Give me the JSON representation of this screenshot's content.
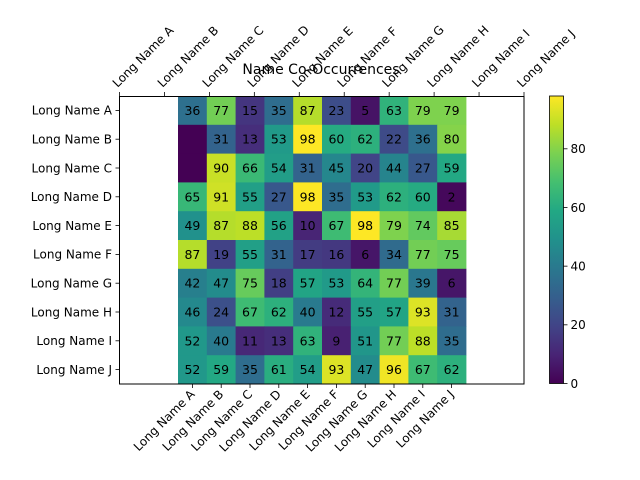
{
  "chart_data": {
    "type": "heatmap",
    "title": "Name Co-Occurrences",
    "xlabel": "",
    "ylabel": "",
    "x_categories": [
      "Long Name A",
      "Long Name B",
      "Long Name C",
      "Long Name D",
      "Long Name E",
      "Long Name F",
      "Long Name G",
      "Long Name H",
      "Long Name I",
      "Long Name J"
    ],
    "y_categories": [
      "Long Name A",
      "Long Name B",
      "Long Name C",
      "Long Name D",
      "Long Name E",
      "Long Name F",
      "Long Name G",
      "Long Name H",
      "Long Name I",
      "Long Name J"
    ],
    "top_axis_labels": [
      "Long Name A",
      "Long Name B",
      "Long Name C",
      "Long Name D",
      "Long Name E",
      "Long Name F",
      "Long Name G",
      "Long Name H",
      "Long Name I",
      "Long Name J"
    ],
    "values": [
      [
        36,
        77,
        15,
        35,
        87,
        23,
        5,
        63,
        79,
        79
      ],
      [
        0,
        31,
        13,
        53,
        98,
        60,
        62,
        22,
        36,
        80
      ],
      [
        0,
        90,
        66,
        54,
        31,
        45,
        20,
        44,
        27,
        59
      ],
      [
        65,
        91,
        55,
        27,
        98,
        35,
        53,
        62,
        60,
        2
      ],
      [
        49,
        87,
        88,
        56,
        10,
        67,
        98,
        79,
        74,
        85
      ],
      [
        87,
        19,
        55,
        31,
        17,
        16,
        6,
        34,
        77,
        75
      ],
      [
        42,
        47,
        75,
        18,
        57,
        53,
        64,
        77,
        39,
        6
      ],
      [
        46,
        24,
        67,
        62,
        40,
        12,
        55,
        57,
        93,
        31
      ],
      [
        52,
        40,
        11,
        13,
        63,
        9,
        51,
        77,
        88,
        35
      ],
      [
        52,
        59,
        35,
        61,
        54,
        93,
        47,
        96,
        67,
        62
      ]
    ],
    "labels": [
      [
        "36",
        "77",
        "15",
        "35",
        "87",
        "23",
        "5",
        "63",
        "79",
        "79"
      ],
      [
        "",
        "31",
        "13",
        "53",
        "98",
        "60",
        "62",
        "22",
        "36",
        "80"
      ],
      [
        "",
        "90",
        "66",
        "54",
        "31",
        "45",
        "20",
        "44",
        "27",
        "59"
      ],
      [
        "65",
        "91",
        "55",
        "27",
        "98",
        "35",
        "53",
        "62",
        "60",
        "2"
      ],
      [
        "49",
        "87",
        "88",
        "56",
        "10",
        "67",
        "98",
        "79",
        "74",
        "85"
      ],
      [
        "87",
        "19",
        "55",
        "31",
        "17",
        "16",
        "6",
        "34",
        "77",
        "75"
      ],
      [
        "42",
        "47",
        "75",
        "18",
        "57",
        "53",
        "64",
        "77",
        "39",
        "6"
      ],
      [
        "46",
        "24",
        "67",
        "62",
        "40",
        "12",
        "55",
        "57",
        "93",
        "31"
      ],
      [
        "52",
        "40",
        "11",
        "13",
        "63",
        "9",
        "51",
        "77",
        "88",
        "35"
      ],
      [
        "52",
        "59",
        "35",
        "61",
        "54",
        "93",
        "47",
        "96",
        "67",
        "62"
      ]
    ],
    "colormap": "viridis",
    "colorbar": {
      "range": [
        0,
        98
      ],
      "ticks": [
        0,
        20,
        40,
        60,
        80
      ],
      "tick_labels": [
        "0",
        "20",
        "40",
        "60",
        "80"
      ]
    },
    "grid": false
  }
}
